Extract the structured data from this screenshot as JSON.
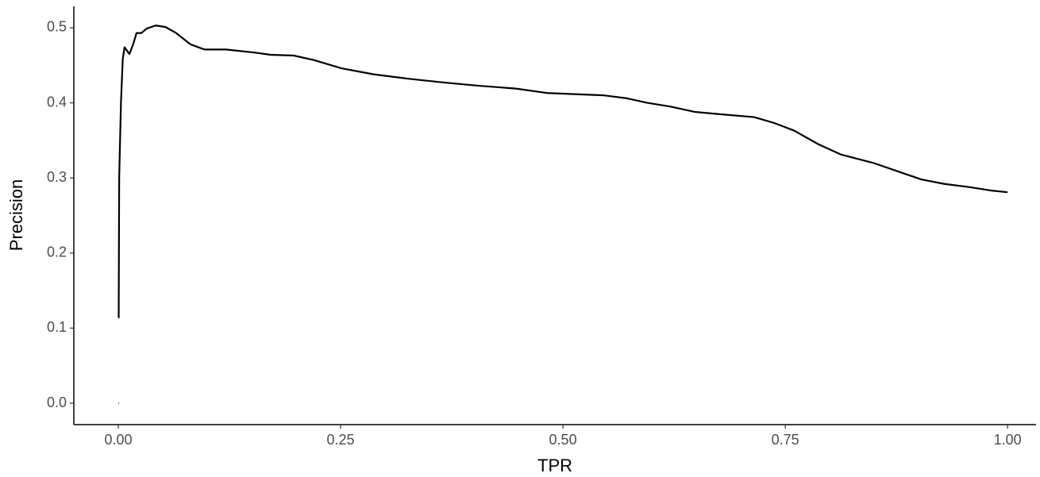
{
  "chart_data": {
    "type": "line",
    "x_label": "TPR",
    "y_label": "Precision",
    "x": [
      0,
      0,
      0,
      0.001,
      0.003,
      0.005,
      0.007,
      0.0125,
      0.017,
      0.0205,
      0.026,
      0.032,
      0.042,
      0.053,
      0.065,
      0.081,
      0.097,
      0.121,
      0.153,
      0.171,
      0.197,
      0.22,
      0.251,
      0.287,
      0.327,
      0.367,
      0.403,
      0.447,
      0.483,
      0.546,
      0.572,
      0.595,
      0.621,
      0.648,
      0.675,
      0.715,
      0.738,
      0.76,
      0.787,
      0.813,
      0.849,
      0.876,
      0.903,
      0.929,
      0.956,
      0.983,
      1.0
    ],
    "series": [
      {
        "color": "#000000",
        "values": [
          0,
          null,
          0.114,
          0.3,
          0.4,
          0.458,
          0.474,
          0.465,
          0.479,
          0.493,
          0.493,
          0.499,
          0.503,
          0.501,
          0.493,
          0.478,
          0.471,
          0.471,
          0.467,
          0.464,
          0.463,
          0.457,
          0.446,
          0.438,
          0.432,
          0.427,
          0.423,
          0.419,
          0.413,
          0.41,
          0.406,
          0.4,
          0.395,
          0.388,
          0.385,
          0.381,
          0.373,
          0.363,
          0.345,
          0.331,
          0.32,
          0.309,
          0.298,
          0.292,
          0.288,
          0.283,
          0.281
        ]
      }
    ],
    "xlim": [
      -0.05,
      1.032
    ],
    "ylim": [
      -0.0285,
      0.5285
    ],
    "xticks": [
      {
        "value": 0,
        "label": "0.00"
      },
      {
        "value": 0.25,
        "label": "0.25"
      },
      {
        "value": 0.5,
        "label": "0.50"
      },
      {
        "value": 0.75,
        "label": "0.75"
      },
      {
        "value": 1,
        "label": "1.00"
      }
    ],
    "yticks": [
      {
        "value": 0,
        "label": "0.0"
      },
      0.1,
      0.2,
      0.3,
      0.4,
      0.5
    ]
  }
}
